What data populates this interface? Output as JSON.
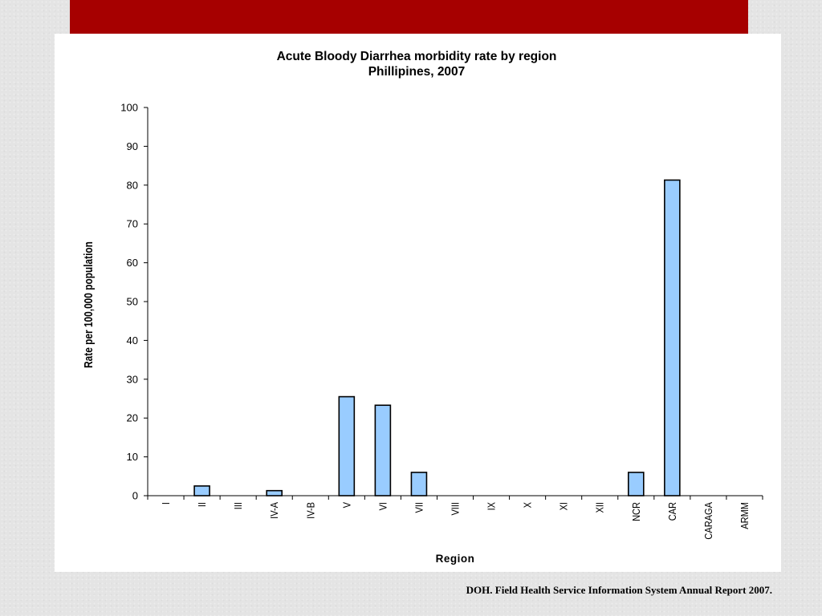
{
  "slide": {
    "accent_color": "#a60000",
    "source_note": "DOH. Field Health Service Information System Annual Report 2007."
  },
  "chart_data": {
    "type": "bar",
    "title": "Acute Bloody Diarrhea  morbidity rate by region",
    "subtitle": "Phillipines, 2007",
    "xlabel": "Region",
    "ylabel": "Rate per 100,000 population",
    "categories": [
      "I",
      "II",
      "III",
      "IV-A",
      "IV-B",
      "V",
      "VI",
      "VII",
      "VIII",
      "IX",
      "X",
      "XI",
      "XII",
      "NCR",
      "CAR",
      "CARAGA",
      "ARMM"
    ],
    "values": [
      0,
      2.5,
      0,
      1.3,
      0,
      25.5,
      23.3,
      6,
      0,
      0,
      0,
      0,
      0,
      6,
      81.3,
      0,
      0
    ],
    "ylim": [
      0,
      100
    ],
    "yticks": [
      0,
      10,
      20,
      30,
      40,
      50,
      60,
      70,
      80,
      90,
      100
    ],
    "grid": false,
    "bar_color": "#99ccff",
    "bar_edge_color": "#000000"
  }
}
